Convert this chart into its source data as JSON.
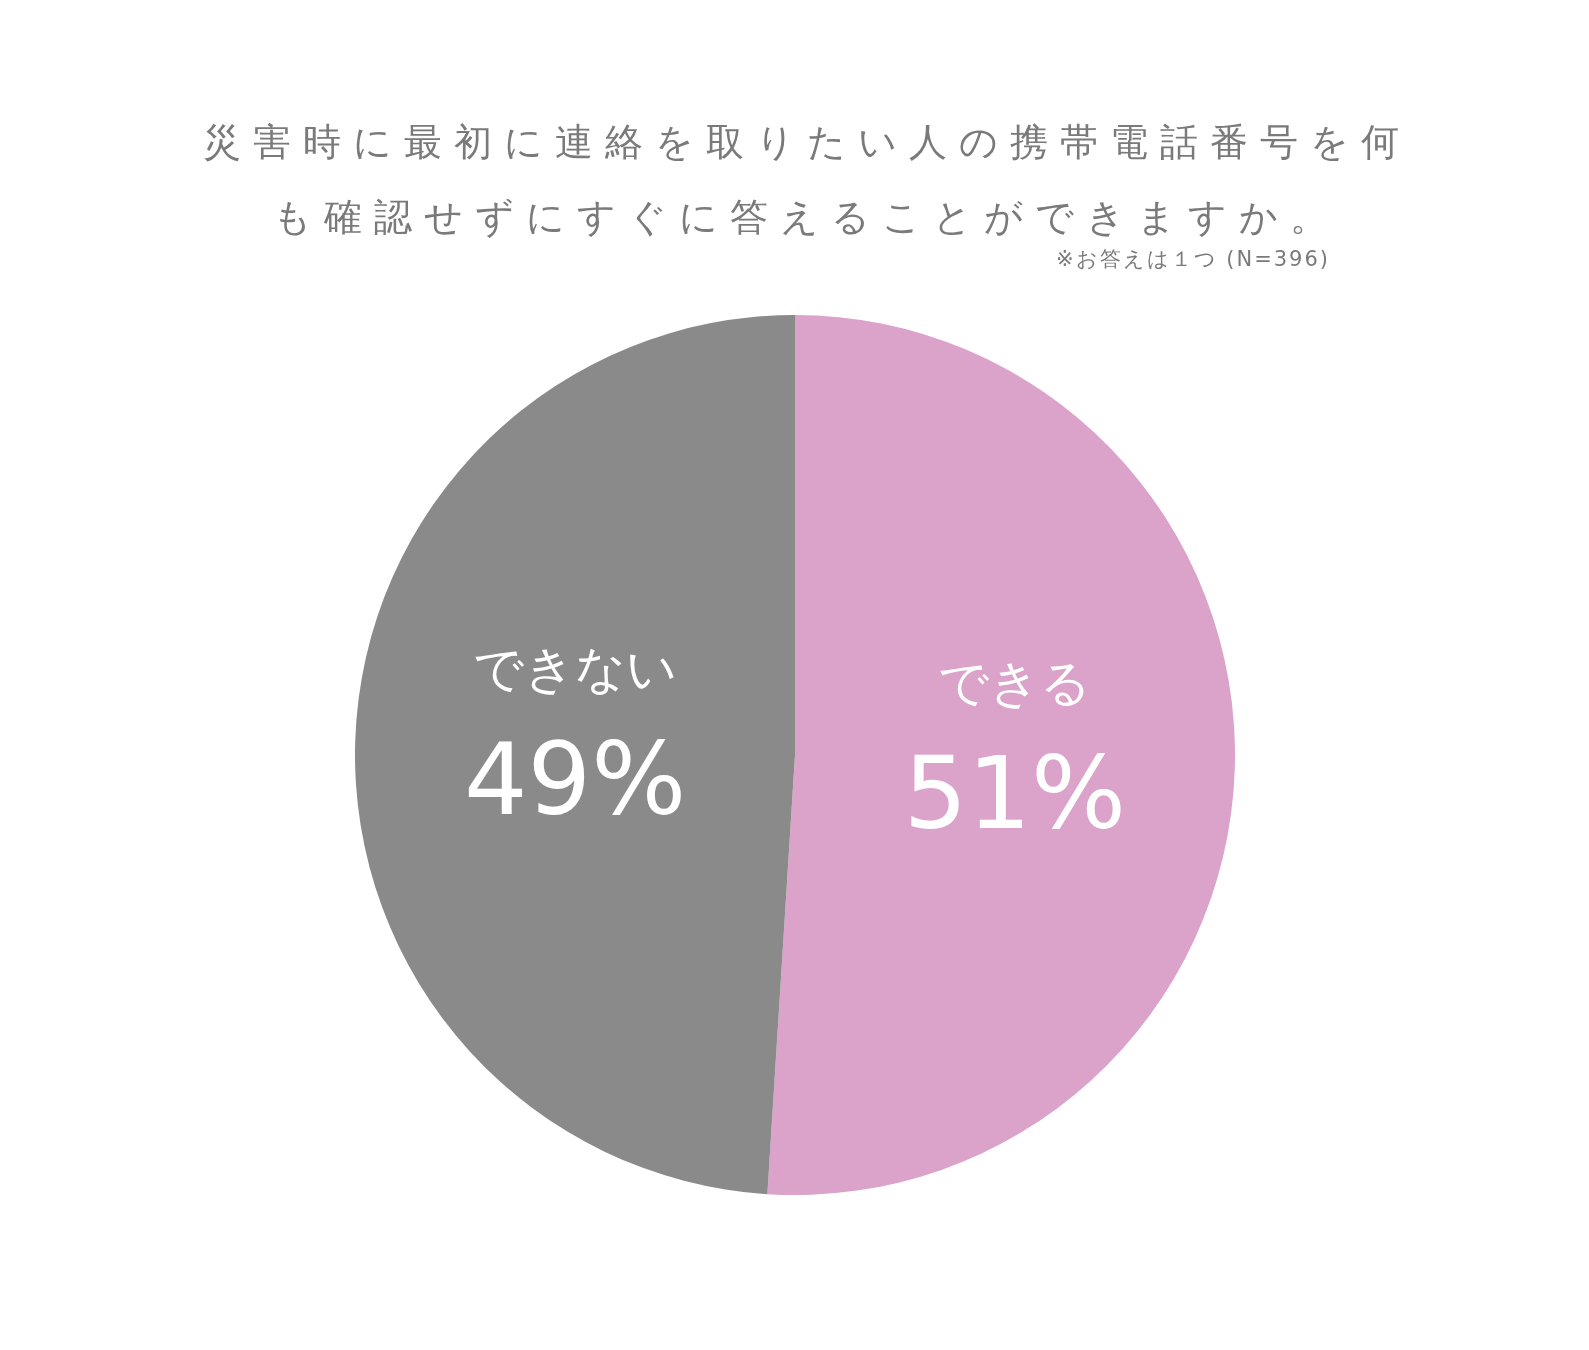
{
  "chart_data": {
    "type": "pie",
    "title": "災害時に最初に連絡を取りたい人の携帯電話番号を何も確認せずにすぐに答えることができますか。",
    "subtitle": "※お答えは１つ (N=396)",
    "categories": [
      "できる",
      "できない"
    ],
    "values": [
      51,
      49
    ],
    "colors": [
      "#dba3c9",
      "#8a8a8a"
    ],
    "value_labels": [
      "51%",
      "49%"
    ],
    "legend": false
  }
}
